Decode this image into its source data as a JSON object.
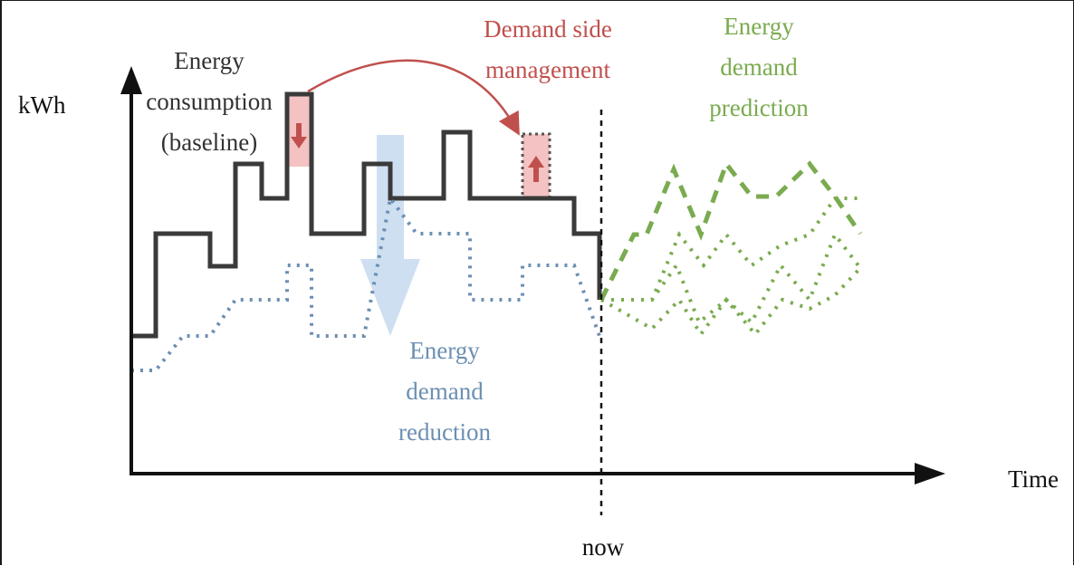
{
  "labels": {
    "y_axis": "kWh",
    "x_axis": "Time",
    "now": "now",
    "baseline": [
      "Energy",
      "consumption",
      "(baseline)"
    ],
    "dsm": [
      "Demand side",
      "management"
    ],
    "prediction": [
      "Energy",
      "demand",
      "prediction"
    ],
    "reduction": [
      "Energy",
      "demand",
      "reduction"
    ]
  },
  "colors": {
    "baseline": "#3a3a3a",
    "reduction": "#6c8fb3",
    "reduction_arrow": "#c9dcf0",
    "dsm": "#c0504d",
    "dsm_box": "#f4c2c2",
    "prediction": "#7aab4f",
    "axes": "#111111"
  },
  "icons": {
    "down_arrow": "down-arrow-icon",
    "up_arrow": "up-arrow-icon",
    "shift_arrow": "curved-arrow-icon",
    "reduction_arrow": "big-down-arrow-icon"
  }
}
